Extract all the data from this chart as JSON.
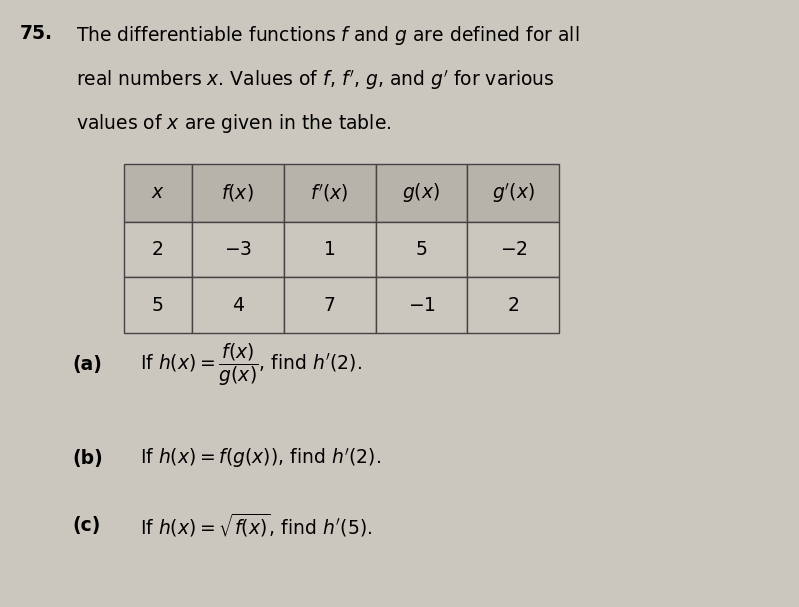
{
  "background_color": "#ccc7be",
  "problem_number": "75.",
  "intro_lines": [
    "The differentiable functions $f$ and $g$ are defined for all",
    "real numbers $x$. Values of $f$, $f'$, $g$, and $g'$ for various",
    "values of $x$ are given in the table."
  ],
  "table_headers": [
    "$x$",
    "$f(x)$",
    "$f'(x)$",
    "$g(x)$",
    "$g'(x)$"
  ],
  "table_rows": [
    [
      "2",
      "$-3$",
      "1",
      "5",
      "$-2$"
    ],
    [
      "5",
      "4",
      "7",
      "$-1$",
      "2"
    ]
  ],
  "header_bg": "#b8b3aa",
  "data_bg": "#ccc7be",
  "border_color": "#444444",
  "parts_labels": [
    "(a)",
    "(b)",
    "(c)"
  ],
  "parts_texts": [
    "If $h(x) = \\dfrac{f(x)}{g(x)}$, find $h'(2)$.",
    "If $h(x) = f(g(x))$, find $h'(2)$.",
    "If $h(x) = \\sqrt{f(x)}$, find $h'(5)$."
  ],
  "font_size": 13.5,
  "font_size_parts": 13.5
}
